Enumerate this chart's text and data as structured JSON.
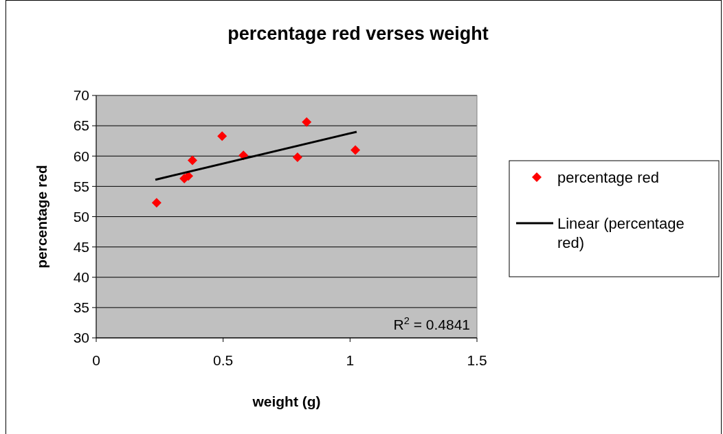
{
  "chart_data": {
    "type": "scatter",
    "title": "percentage red verses weight",
    "xlabel": "weight (g)",
    "ylabel": "percentage red",
    "xlim": [
      0,
      1.5
    ],
    "xticks": [
      0,
      0.5,
      1,
      1.5
    ],
    "ylim": [
      30,
      70
    ],
    "yticks": [
      30,
      35,
      40,
      45,
      50,
      55,
      60,
      65,
      70
    ],
    "grid": "y",
    "legend": "right",
    "annotations": [
      "R$^{2}$ = 0.4841"
    ],
    "series": [
      {
        "name": "percentage red",
        "marker": "diamond",
        "color": "#ff0000",
        "x": [
          0.238,
          0.347,
          0.363,
          0.379,
          0.496,
          0.58,
          0.793,
          0.829,
          1.021
        ],
        "values": [
          52.3,
          56.3,
          56.7,
          59.3,
          63.3,
          60.1,
          59.8,
          65.6,
          61.0
        ]
      },
      {
        "name": "Linear (percentage red)",
        "type": "line",
        "marker": "none",
        "line_style": "solid",
        "color": "#000000",
        "x": [
          0.233,
          1.026
        ],
        "values": [
          56.1,
          64.0
        ]
      }
    ]
  }
}
